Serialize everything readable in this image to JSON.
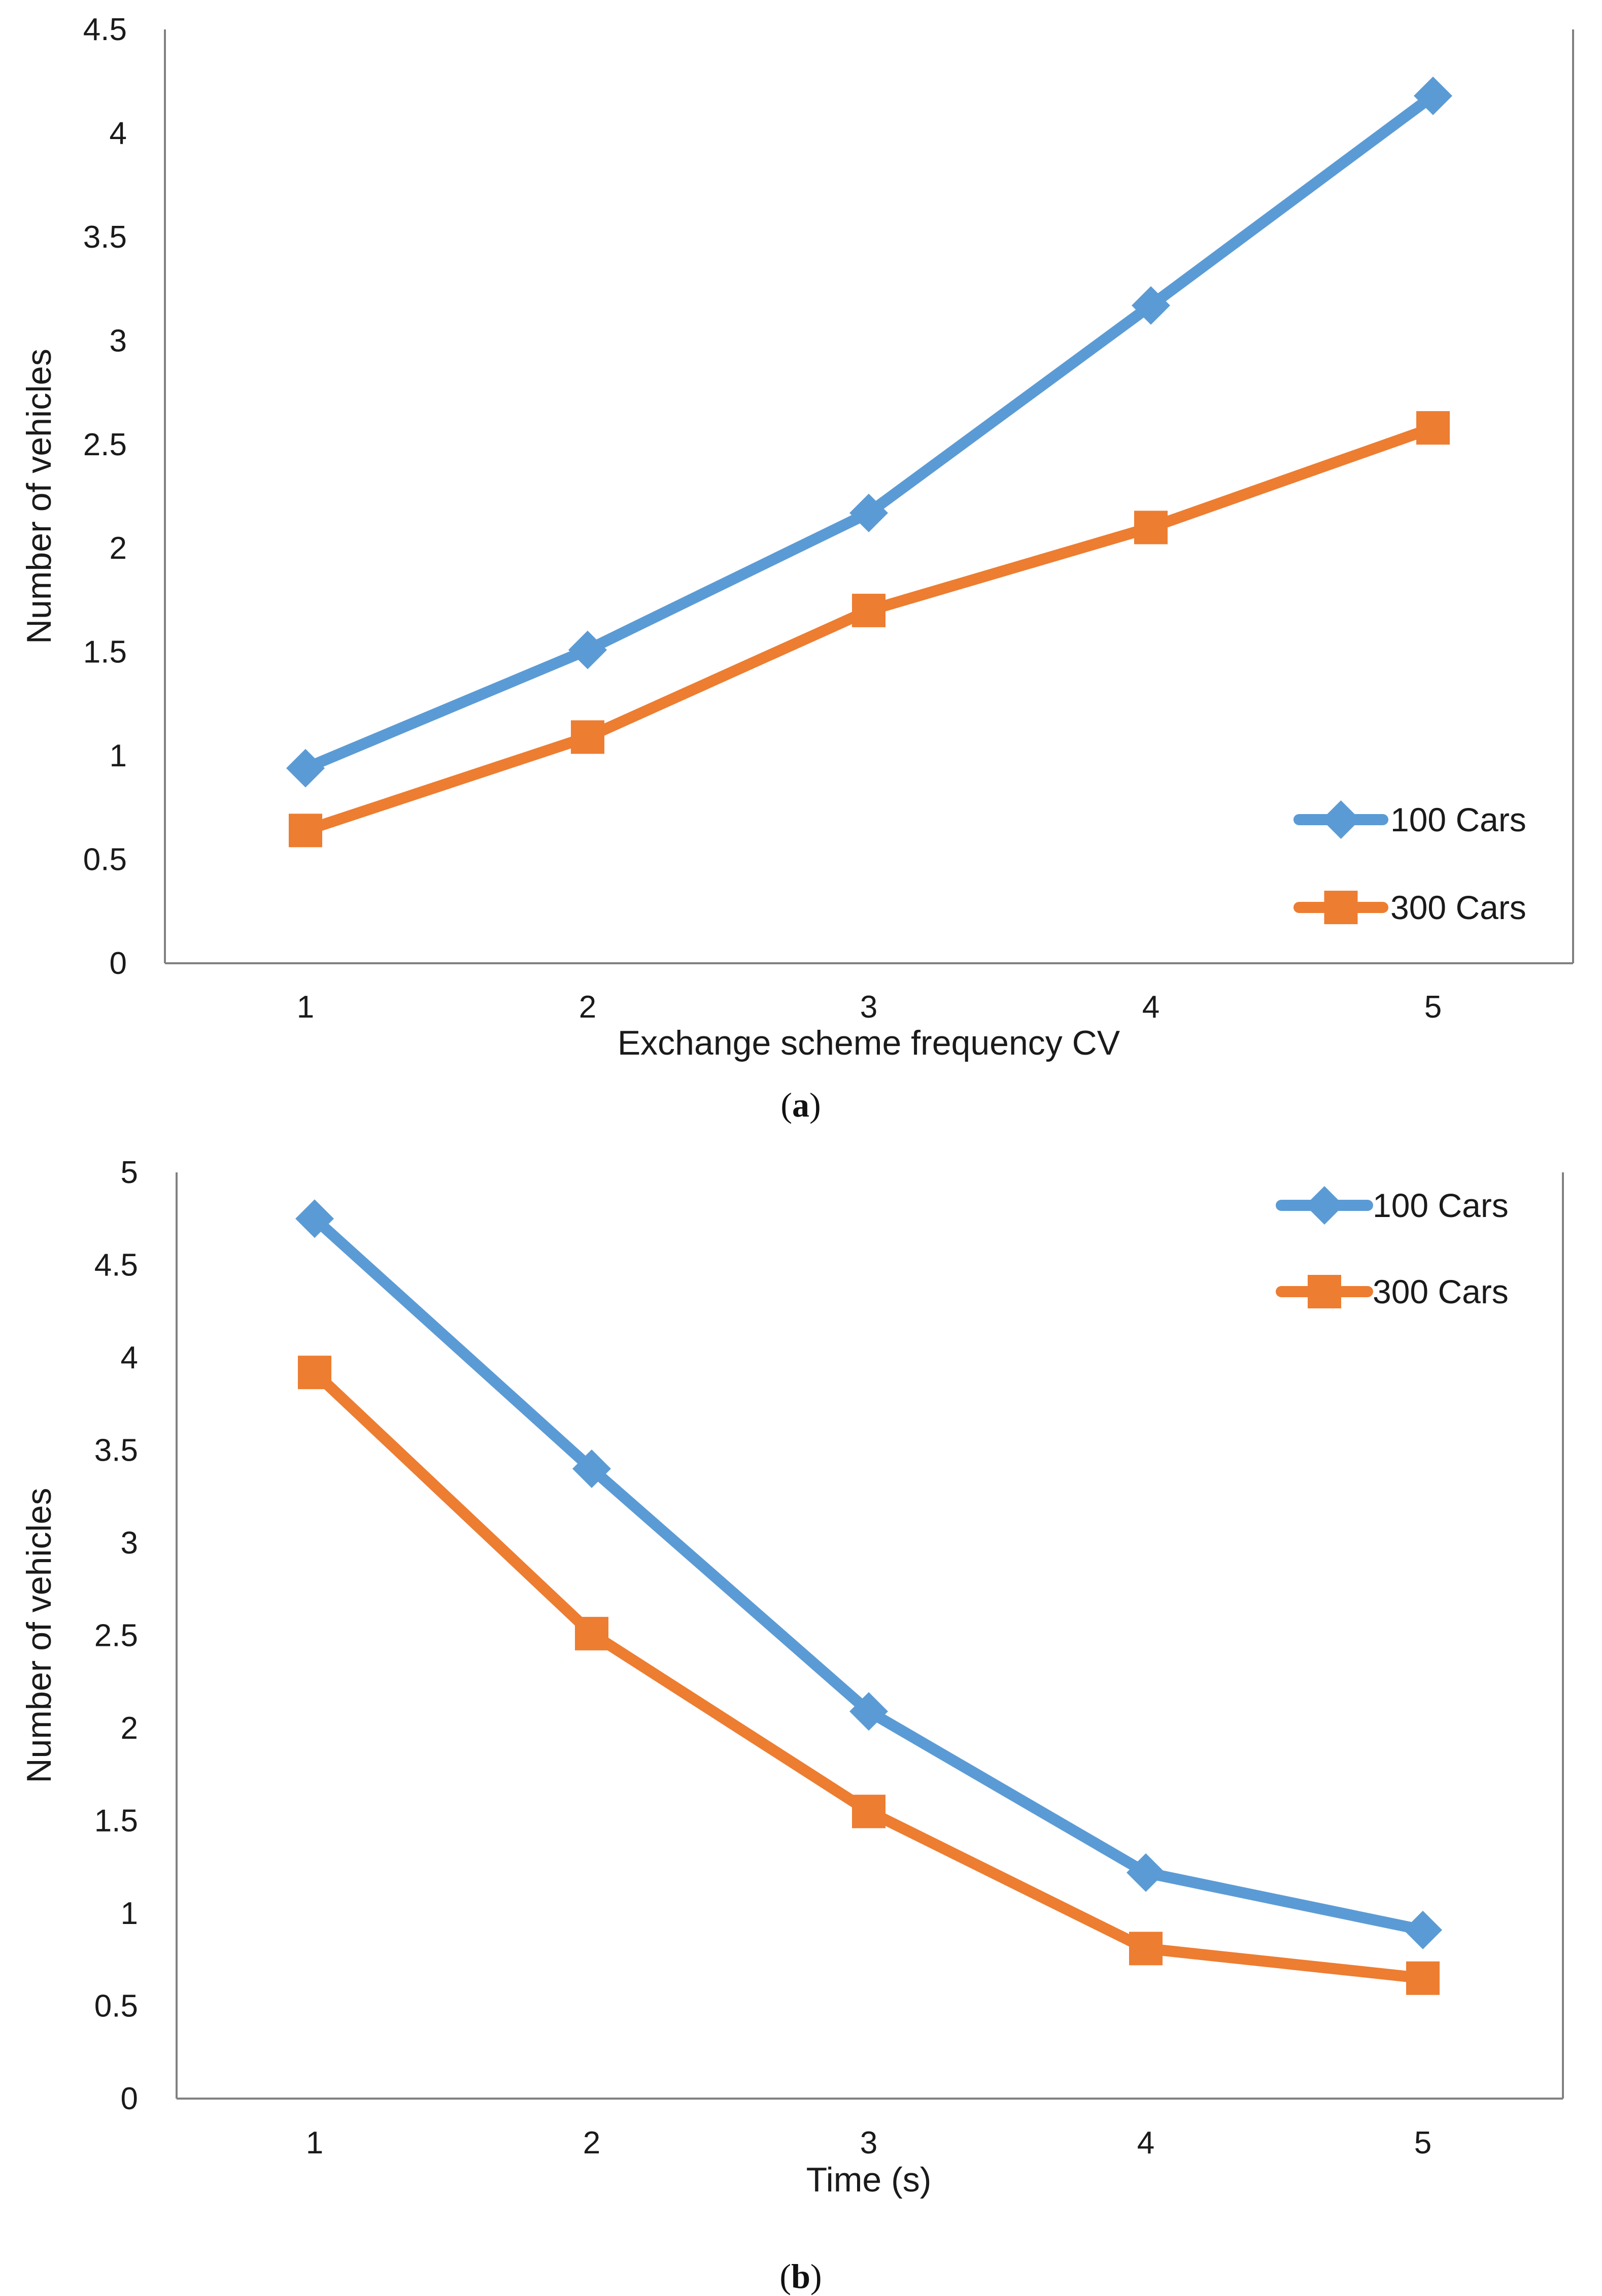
{
  "colors": {
    "series_100": "#5B9BD5",
    "series_300": "#ED7D31",
    "axis": "#808080"
  },
  "chart_data": [
    {
      "type": "line",
      "panel": "a",
      "caption_open": "(",
      "caption_letter": "a",
      "caption_close": ")",
      "title": "",
      "xlabel": "Exchange scheme  frequency CV",
      "ylabel": "Number of vehicles",
      "categories": [
        "1",
        "2",
        "3",
        "4",
        "5"
      ],
      "ylim": [
        0,
        4.5
      ],
      "yticks": [
        "0",
        "0.5",
        "1",
        "1.5",
        "2",
        "2.5",
        "3",
        "3.5",
        "4",
        "4.5"
      ],
      "grid": false,
      "legend_position": "bottom-right",
      "series": [
        {
          "name": "100 Cars",
          "marker": "diamond",
          "values": [
            0.94,
            1.51,
            2.17,
            3.17,
            4.18
          ]
        },
        {
          "name": "300 Cars",
          "marker": "square",
          "values": [
            0.64,
            1.09,
            1.7,
            2.1,
            2.58
          ]
        }
      ]
    },
    {
      "type": "line",
      "panel": "b",
      "caption_open": "(",
      "caption_letter": "b",
      "caption_close": ")",
      "title": "",
      "xlabel": "Time (s)",
      "ylabel": "Number of vehicles",
      "categories": [
        "1",
        "2",
        "3",
        "4",
        "5"
      ],
      "ylim": [
        0,
        5
      ],
      "yticks": [
        "0",
        "0.5",
        "1",
        "1.5",
        "2",
        "2.5",
        "3",
        "3.5",
        "4",
        "4.5",
        "5"
      ],
      "grid": false,
      "legend_position": "top-right",
      "series": [
        {
          "name": "100 Cars",
          "marker": "diamond",
          "values": [
            4.75,
            3.4,
            2.09,
            1.22,
            0.91
          ]
        },
        {
          "name": "300 Cars",
          "marker": "square",
          "values": [
            3.92,
            2.51,
            1.55,
            0.81,
            0.65
          ]
        }
      ]
    }
  ]
}
